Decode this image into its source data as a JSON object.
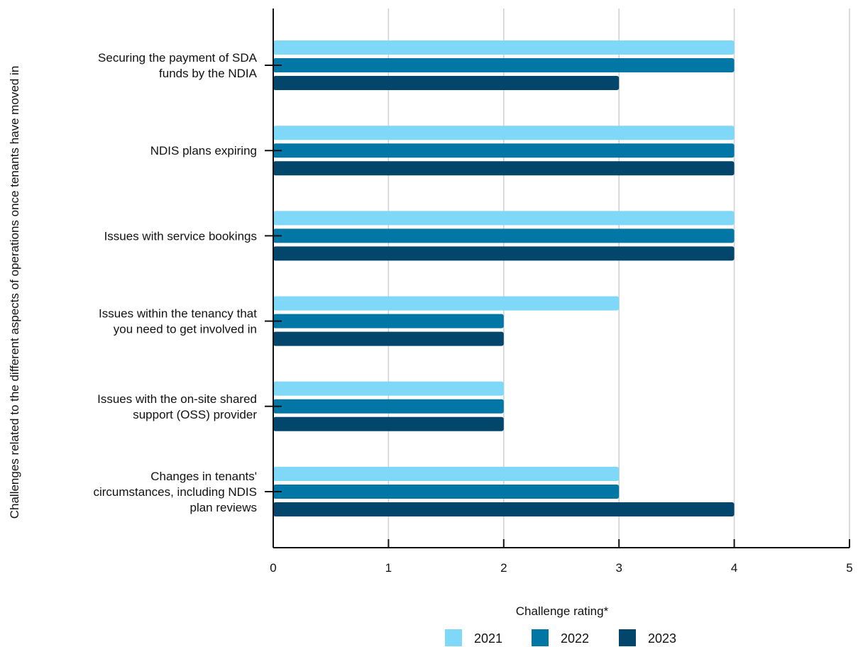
{
  "chart_data": {
    "type": "bar",
    "orientation": "horizontal",
    "categories": [
      [
        "Securing the payment of SDA",
        "funds by the NDIA"
      ],
      [
        "NDIS plans expiring"
      ],
      [
        "Issues with service bookings"
      ],
      [
        "Issues within the tenancy that",
        "you need to get involved in"
      ],
      [
        "Issues with the on-site shared",
        "support (OSS) provider"
      ],
      [
        "Changes in tenants'",
        "circumstances, including NDIS",
        "plan reviews"
      ]
    ],
    "series": [
      {
        "name": "2021",
        "color": "#7fd8f8",
        "values": [
          4,
          4,
          4,
          3,
          2,
          3
        ]
      },
      {
        "name": "2022",
        "color": "#0277a6",
        "values": [
          4,
          4,
          4,
          2,
          2,
          3
        ]
      },
      {
        "name": "2023",
        "color": "#02476b",
        "values": [
          3,
          4,
          4,
          2,
          2,
          4
        ]
      }
    ],
    "xlabel": "Challenge rating*",
    "ylabel": "Challenges related to the different aspects of operations once tenants have moved in",
    "xlim": [
      0,
      5
    ],
    "xticks": [
      0,
      1,
      2,
      3,
      4,
      5
    ],
    "grid": true,
    "legend_position": "bottom"
  }
}
